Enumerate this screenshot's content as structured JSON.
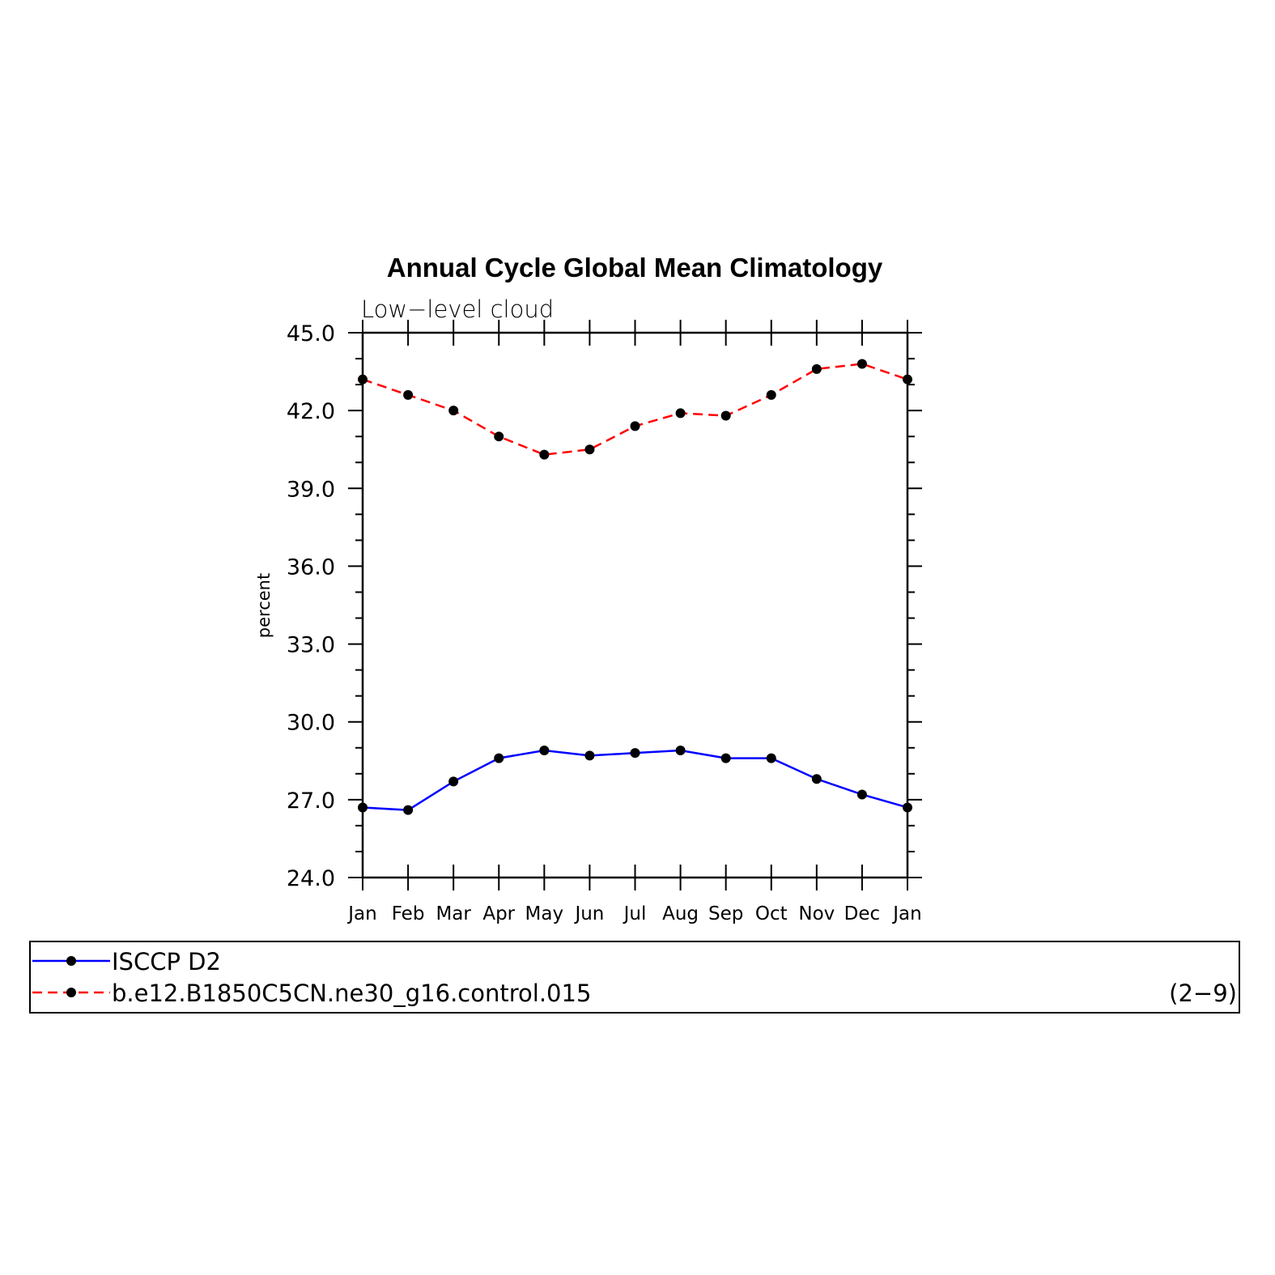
{
  "chart_data": {
    "type": "line",
    "title": "Annual Cycle Global Mean Climatology",
    "subtitle": "Low−level cloud",
    "ylabel": "percent",
    "xlabel": "",
    "categories": [
      "Jan",
      "Feb",
      "Mar",
      "Apr",
      "May",
      "Jun",
      "Jul",
      "Aug",
      "Sep",
      "Oct",
      "Nov",
      "Dec",
      "Jan"
    ],
    "ylim": [
      24.0,
      45.0
    ],
    "yticks": [
      "45.0",
      "42.0",
      "39.0",
      "36.0",
      "33.0",
      "30.0",
      "27.0",
      "24.0"
    ],
    "ytick_values": [
      45,
      42,
      39,
      36,
      33,
      30,
      27,
      24
    ],
    "series": [
      {
        "name": "ISCCP D2",
        "color": "#0000ff",
        "style": "solid",
        "marker": "dot",
        "values": [
          26.7,
          26.6,
          27.7,
          28.6,
          28.9,
          28.7,
          28.8,
          28.9,
          28.6,
          28.6,
          27.8,
          27.2,
          26.7
        ]
      },
      {
        "name": "b.e12.B1850C5CN.ne30_g16.control.015",
        "color": "#ff0000",
        "style": "dashed",
        "marker": "dot",
        "values": [
          43.2,
          42.6,
          42.0,
          41.0,
          40.3,
          40.5,
          41.4,
          41.9,
          41.8,
          42.6,
          43.6,
          43.8,
          43.2
        ]
      }
    ],
    "grid": false,
    "legend_position": "bottom",
    "annotation": "(2−9)"
  }
}
